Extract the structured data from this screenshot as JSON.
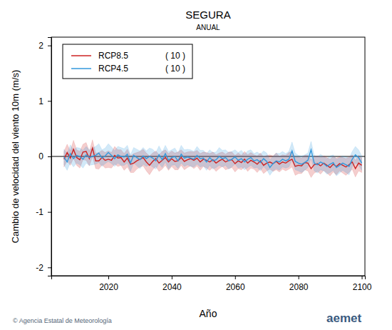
{
  "chart_data": {
    "type": "line",
    "title": "SEGURA",
    "subtitle": "ANUAL",
    "y_label": "Cambio de velocidad del viento 10m (m/s)",
    "x_label": "Año",
    "source": "© Agencia Estatal de Meteorología",
    "logo": "aemet",
    "legend": "upper left",
    "grid": false,
    "xlim": [
      2002,
      2101
    ],
    "ylim": [
      -2.15,
      2.15
    ],
    "xticks": [
      2020,
      2040,
      2060,
      2080,
      2100
    ],
    "yticks": [
      -2,
      -1,
      0,
      1,
      2
    ],
    "hlines": [
      0
    ],
    "x": [
      2006,
      2007,
      2008,
      2009,
      2010,
      2011,
      2012,
      2013,
      2014,
      2015,
      2016,
      2017,
      2018,
      2019,
      2020,
      2021,
      2022,
      2023,
      2024,
      2025,
      2026,
      2027,
      2028,
      2029,
      2030,
      2031,
      2032,
      2033,
      2034,
      2035,
      2036,
      2037,
      2038,
      2039,
      2040,
      2041,
      2042,
      2043,
      2044,
      2045,
      2046,
      2047,
      2048,
      2049,
      2050,
      2051,
      2052,
      2053,
      2054,
      2055,
      2056,
      2057,
      2058,
      2059,
      2060,
      2061,
      2062,
      2063,
      2064,
      2065,
      2066,
      2067,
      2068,
      2069,
      2070,
      2071,
      2072,
      2073,
      2074,
      2075,
      2076,
      2077,
      2078,
      2079,
      2080,
      2081,
      2082,
      2083,
      2084,
      2085,
      2086,
      2087,
      2088,
      2089,
      2090,
      2091,
      2092,
      2093,
      2094,
      2095,
      2096,
      2097,
      2098,
      2099,
      2100
    ],
    "series": [
      {
        "name": "RCP8.5",
        "legend_note": "( 10 )",
        "color": "#cc2222",
        "values": [
          -0.05,
          0.07,
          -0.03,
          0.13,
          -0.02,
          -0.06,
          0.08,
          0.09,
          -0.04,
          0.15,
          -0.08,
          -0.08,
          -0.02,
          -0.07,
          -0.05,
          -0.07,
          0.02,
          -0.03,
          -0.02,
          -0.1,
          -0.03,
          -0.14,
          -0.12,
          -0.08,
          -0.05,
          -0.02,
          -0.1,
          -0.16,
          -0.09,
          -0.04,
          -0.12,
          -0.07,
          -0.02,
          -0.1,
          -0.04,
          -0.09,
          -0.08,
          -0.02,
          -0.09,
          -0.06,
          -0.04,
          -0.07,
          -0.03,
          -0.1,
          -0.05,
          -0.07,
          -0.1,
          -0.06,
          -0.12,
          -0.08,
          -0.05,
          -0.1,
          -0.07,
          -0.06,
          -0.13,
          -0.08,
          -0.11,
          -0.05,
          -0.12,
          -0.07,
          -0.1,
          -0.14,
          -0.08,
          -0.16,
          -0.12,
          -0.1,
          -0.13,
          -0.09,
          -0.14,
          -0.1,
          -0.12,
          -0.08,
          -0.05,
          -0.18,
          -0.16,
          -0.17,
          -0.11,
          -0.12,
          -0.22,
          -0.15,
          -0.13,
          -0.17,
          -0.12,
          -0.16,
          -0.2,
          -0.14,
          -0.18,
          -0.13,
          -0.16,
          -0.19,
          -0.15,
          -0.1,
          -0.22,
          -0.12,
          -0.16
        ],
        "error": [
          0.14,
          0.15,
          0.13,
          0.16,
          0.14,
          0.15,
          0.14,
          0.16,
          0.13,
          0.15,
          0.14,
          0.15,
          0.13,
          0.14,
          0.15,
          0.14,
          0.16,
          0.15,
          0.14,
          0.15,
          0.16,
          0.15,
          0.17,
          0.15,
          0.14,
          0.15,
          0.16,
          0.17,
          0.15,
          0.14,
          0.15,
          0.16,
          0.14,
          0.15,
          0.14,
          0.15,
          0.16,
          0.14,
          0.15,
          0.14,
          0.13,
          0.15,
          0.14,
          0.15,
          0.13,
          0.14,
          0.15,
          0.14,
          0.15,
          0.14,
          0.13,
          0.14,
          0.15,
          0.14,
          0.15,
          0.14,
          0.13,
          0.14,
          0.15,
          0.14,
          0.13,
          0.15,
          0.14,
          0.15,
          0.14,
          0.13,
          0.14,
          0.15,
          0.14,
          0.13,
          0.14,
          0.15,
          0.14,
          0.16,
          0.15,
          0.14,
          0.13,
          0.14,
          0.16,
          0.15,
          0.14,
          0.15,
          0.13,
          0.14,
          0.15,
          0.14,
          0.15,
          0.13,
          0.14,
          0.15,
          0.14,
          0.13,
          0.15,
          0.14,
          0.13
        ]
      },
      {
        "name": "RCP4.5",
        "legend_note": "( 10 )",
        "color": "#3399dd",
        "values": [
          -0.01,
          -0.1,
          0.05,
          -0.04,
          0.02,
          0.0,
          -0.05,
          0.03,
          -0.02,
          0.0,
          0.02,
          0.06,
          -0.03,
          0.01,
          0.07,
          0.02,
          -0.04,
          0.03,
          0.0,
          -0.01,
          0.04,
          -0.12,
          0.02,
          -0.02,
          -0.06,
          0.01,
          -0.04,
          0.0,
          -0.03,
          -0.08,
          0.03,
          -0.06,
          0.05,
          -0.07,
          -0.02,
          0.0,
          -0.08,
          0.04,
          -0.03,
          -0.01,
          -0.03,
          -0.05,
          0.02,
          -0.04,
          -0.03,
          -0.1,
          -0.02,
          -0.08,
          -0.06,
          0.0,
          -0.04,
          -0.02,
          -0.08,
          -0.05,
          -0.01,
          -0.07,
          -0.04,
          -0.1,
          -0.05,
          -0.02,
          -0.08,
          -0.06,
          -0.11,
          -0.04,
          -0.09,
          -0.2,
          -0.13,
          -0.08,
          -0.1,
          -0.05,
          -0.08,
          -0.05,
          0.1,
          -0.09,
          -0.12,
          -0.14,
          -0.11,
          -0.07,
          0.12,
          -0.12,
          -0.15,
          -0.1,
          -0.13,
          -0.18,
          -0.14,
          -0.11,
          -0.2,
          -0.16,
          -0.12,
          -0.15,
          -0.18,
          -0.05,
          0.03,
          -0.02,
          -0.12
        ],
        "error": [
          0.14,
          0.15,
          0.16,
          0.15,
          0.14,
          0.15,
          0.16,
          0.15,
          0.14,
          0.15,
          0.16,
          0.17,
          0.15,
          0.14,
          0.16,
          0.15,
          0.14,
          0.15,
          0.16,
          0.15,
          0.16,
          0.15,
          0.14,
          0.15,
          0.16,
          0.15,
          0.14,
          0.15,
          0.16,
          0.15,
          0.16,
          0.14,
          0.15,
          0.16,
          0.14,
          0.15,
          0.14,
          0.16,
          0.15,
          0.14,
          0.15,
          0.14,
          0.16,
          0.15,
          0.14,
          0.15,
          0.14,
          0.15,
          0.14,
          0.16,
          0.15,
          0.14,
          0.15,
          0.14,
          0.13,
          0.14,
          0.15,
          0.14,
          0.15,
          0.14,
          0.13,
          0.14,
          0.15,
          0.14,
          0.15,
          0.14,
          0.13,
          0.14,
          0.15,
          0.14,
          0.13,
          0.14,
          0.16,
          0.15,
          0.14,
          0.15,
          0.14,
          0.13,
          0.15,
          0.14,
          0.15,
          0.14,
          0.13,
          0.14,
          0.15,
          0.14,
          0.15,
          0.14,
          0.13,
          0.14,
          0.15,
          0.14,
          0.15,
          0.14,
          0.13
        ]
      }
    ]
  }
}
